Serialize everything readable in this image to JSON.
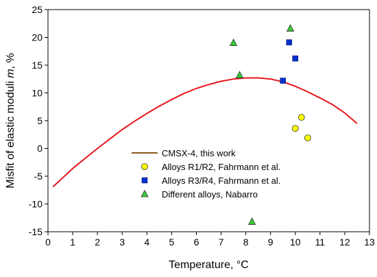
{
  "chart_data": {
    "type": "scatter",
    "xlabel": "Temperature, °C",
    "ylabel_prefix": "Misfit of elastic moduli ",
    "ylabel_var": "m",
    "ylabel_suffix": ", %",
    "xlim": [
      0,
      13
    ],
    "ylim": [
      -15,
      25
    ],
    "x_ticks": [
      0,
      1,
      2,
      3,
      4,
      5,
      6,
      7,
      8,
      9,
      10,
      11,
      12,
      13
    ],
    "y_ticks": [
      -15,
      -10,
      -5,
      0,
      5,
      10,
      15,
      20,
      25
    ],
    "grid": false,
    "legend_position": "lower-center",
    "series": [
      {
        "name": "CMSX-4, this work",
        "kind": "line",
        "color": "#e8141a",
        "legend_color": "#8b5a1b",
        "x": [
          0.2,
          0.5,
          1,
          1.5,
          2,
          2.5,
          3,
          3.5,
          4,
          4.5,
          5,
          5.5,
          6,
          6.5,
          7,
          7.5,
          8,
          8.5,
          9,
          9.5,
          10,
          10.5,
          11,
          11.5,
          12,
          12.5
        ],
        "y": [
          -6.9,
          -5.7,
          -3.6,
          -1.8,
          0,
          1.7,
          3.4,
          4.9,
          6.3,
          7.6,
          8.8,
          9.9,
          10.8,
          11.5,
          12.1,
          12.5,
          12.7,
          12.7,
          12.5,
          12.0,
          11.2,
          10.2,
          9.1,
          7.9,
          6.4,
          4.5
        ]
      },
      {
        "name": "Alloys R1/R2, Fahrmann et al.",
        "kind": "marker",
        "marker": "circle",
        "color": "#ffff00",
        "x": [
          10.0,
          10.25,
          10.5
        ],
        "y": [
          3.6,
          5.6,
          1.9
        ]
      },
      {
        "name": "Alloys R3/R4, Fahrmann et al.",
        "kind": "marker",
        "marker": "square",
        "color": "#0033cc",
        "x": [
          9.5,
          9.75,
          10.0
        ],
        "y": [
          12.2,
          19.1,
          16.2
        ]
      },
      {
        "name": "Different alloys, Nabarro",
        "kind": "marker",
        "marker": "triangle",
        "color": "#33cc33",
        "x": [
          7.5,
          7.75,
          9.8,
          8.25
        ],
        "y": [
          19.0,
          13.2,
          21.6,
          -13.2
        ]
      }
    ]
  }
}
